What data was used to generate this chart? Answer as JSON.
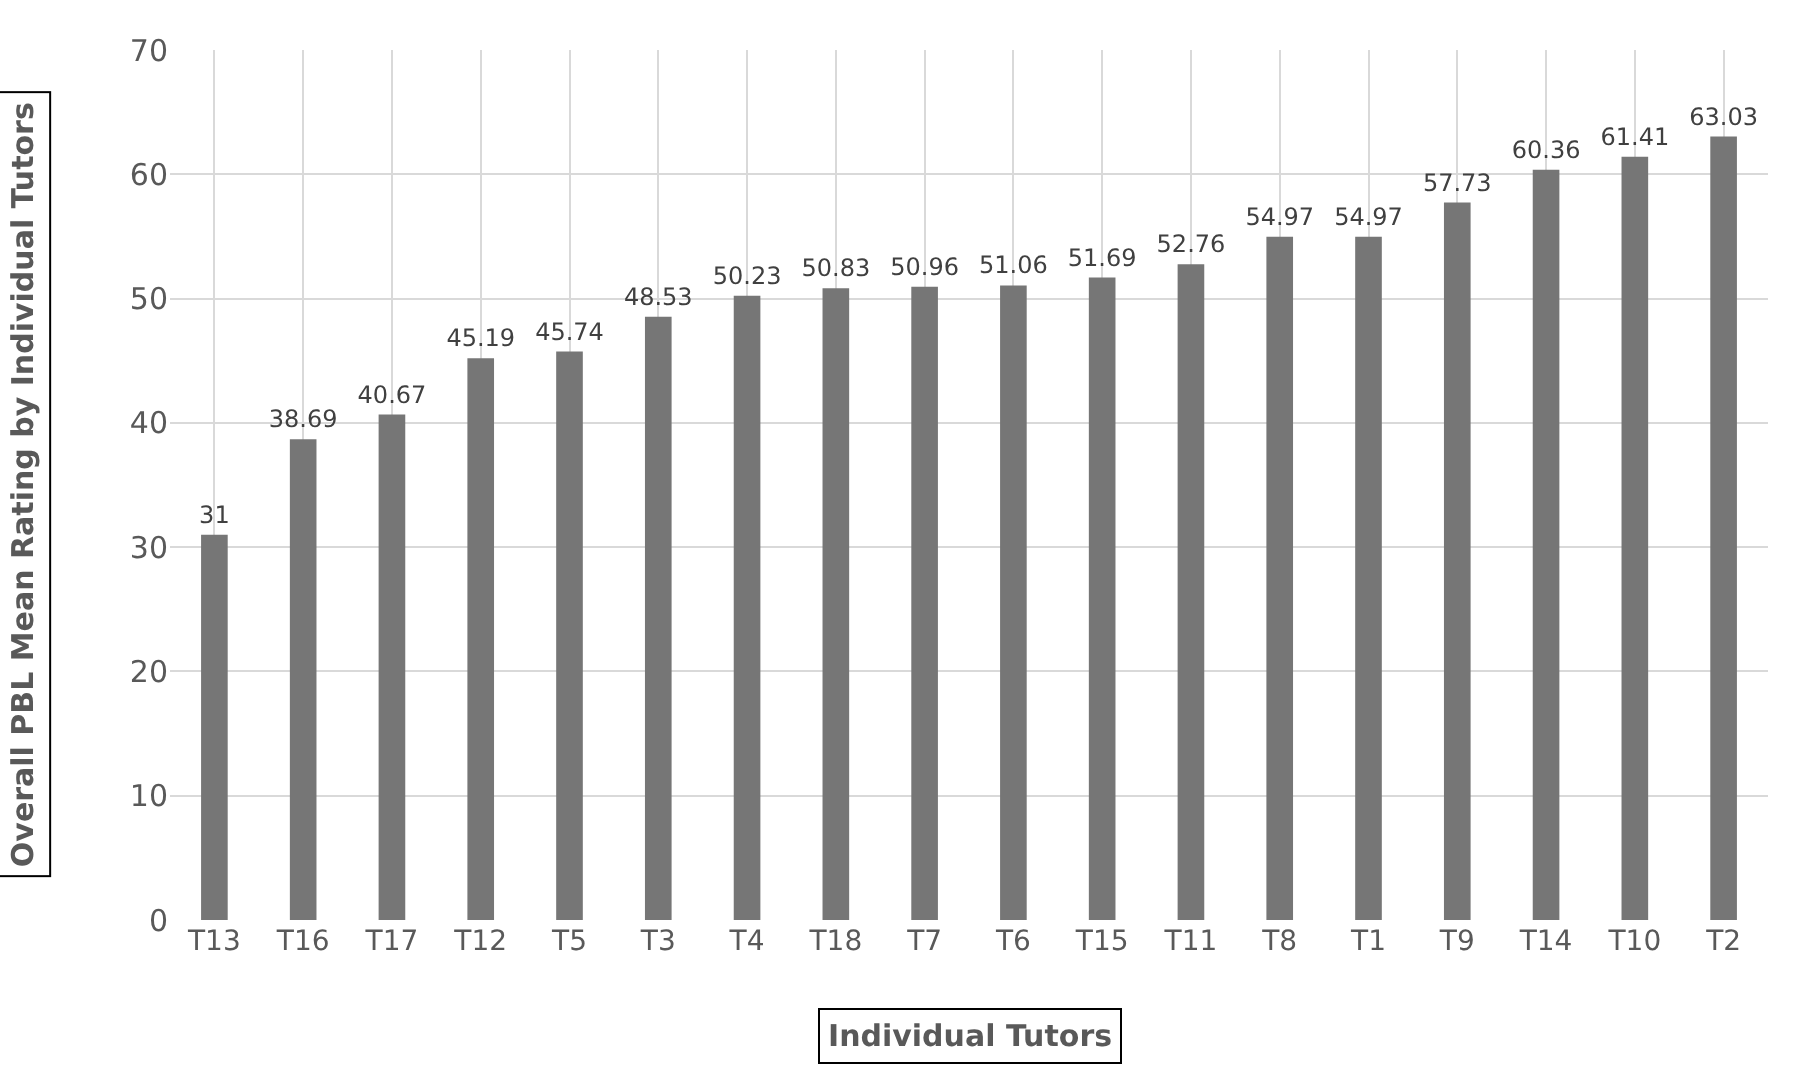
{
  "chart_data": {
    "type": "bar",
    "xlabel": "Individual Tutors",
    "ylabel": "Overall PBL Mean Rating by Individual Tutors",
    "categories": [
      "T13",
      "T16",
      "T17",
      "T12",
      "T5",
      "T3",
      "T4",
      "T18",
      "T7",
      "T6",
      "T15",
      "T11",
      "T8",
      "T1",
      "T9",
      "T14",
      "T10",
      "T2"
    ],
    "values": [
      31,
      38.69,
      40.67,
      45.19,
      45.74,
      48.53,
      50.23,
      50.83,
      50.96,
      51.06,
      51.69,
      52.76,
      54.97,
      54.97,
      57.73,
      60.36,
      61.41,
      63.03
    ],
    "color": "#767676",
    "ylim": [
      0,
      70
    ],
    "yticks": [
      0,
      10,
      20,
      30,
      40,
      50,
      60,
      70
    ],
    "grid": true,
    "data_labels": true
  }
}
